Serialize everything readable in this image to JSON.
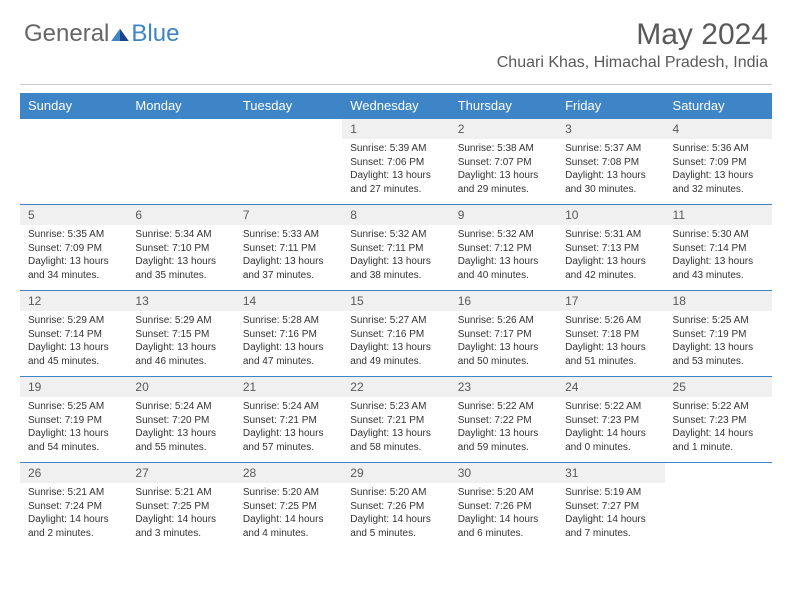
{
  "brand": {
    "general": "General",
    "blue": "Blue"
  },
  "title": "May 2024",
  "location": "Chuari Khas, Himachal Pradesh, India",
  "colors": {
    "accent": "#3d85c6",
    "text": "#595959",
    "dayHeaderBg": "#f0f0f0"
  },
  "weekdays": [
    "Sunday",
    "Monday",
    "Tuesday",
    "Wednesday",
    "Thursday",
    "Friday",
    "Saturday"
  ],
  "weeks": [
    [
      null,
      null,
      null,
      {
        "day": "1",
        "sunrise": "Sunrise: 5:39 AM",
        "sunset": "Sunset: 7:06 PM",
        "daylight": "Daylight: 13 hours and 27 minutes."
      },
      {
        "day": "2",
        "sunrise": "Sunrise: 5:38 AM",
        "sunset": "Sunset: 7:07 PM",
        "daylight": "Daylight: 13 hours and 29 minutes."
      },
      {
        "day": "3",
        "sunrise": "Sunrise: 5:37 AM",
        "sunset": "Sunset: 7:08 PM",
        "daylight": "Daylight: 13 hours and 30 minutes."
      },
      {
        "day": "4",
        "sunrise": "Sunrise: 5:36 AM",
        "sunset": "Sunset: 7:09 PM",
        "daylight": "Daylight: 13 hours and 32 minutes."
      }
    ],
    [
      {
        "day": "5",
        "sunrise": "Sunrise: 5:35 AM",
        "sunset": "Sunset: 7:09 PM",
        "daylight": "Daylight: 13 hours and 34 minutes."
      },
      {
        "day": "6",
        "sunrise": "Sunrise: 5:34 AM",
        "sunset": "Sunset: 7:10 PM",
        "daylight": "Daylight: 13 hours and 35 minutes."
      },
      {
        "day": "7",
        "sunrise": "Sunrise: 5:33 AM",
        "sunset": "Sunset: 7:11 PM",
        "daylight": "Daylight: 13 hours and 37 minutes."
      },
      {
        "day": "8",
        "sunrise": "Sunrise: 5:32 AM",
        "sunset": "Sunset: 7:11 PM",
        "daylight": "Daylight: 13 hours and 38 minutes."
      },
      {
        "day": "9",
        "sunrise": "Sunrise: 5:32 AM",
        "sunset": "Sunset: 7:12 PM",
        "daylight": "Daylight: 13 hours and 40 minutes."
      },
      {
        "day": "10",
        "sunrise": "Sunrise: 5:31 AM",
        "sunset": "Sunset: 7:13 PM",
        "daylight": "Daylight: 13 hours and 42 minutes."
      },
      {
        "day": "11",
        "sunrise": "Sunrise: 5:30 AM",
        "sunset": "Sunset: 7:14 PM",
        "daylight": "Daylight: 13 hours and 43 minutes."
      }
    ],
    [
      {
        "day": "12",
        "sunrise": "Sunrise: 5:29 AM",
        "sunset": "Sunset: 7:14 PM",
        "daylight": "Daylight: 13 hours and 45 minutes."
      },
      {
        "day": "13",
        "sunrise": "Sunrise: 5:29 AM",
        "sunset": "Sunset: 7:15 PM",
        "daylight": "Daylight: 13 hours and 46 minutes."
      },
      {
        "day": "14",
        "sunrise": "Sunrise: 5:28 AM",
        "sunset": "Sunset: 7:16 PM",
        "daylight": "Daylight: 13 hours and 47 minutes."
      },
      {
        "day": "15",
        "sunrise": "Sunrise: 5:27 AM",
        "sunset": "Sunset: 7:16 PM",
        "daylight": "Daylight: 13 hours and 49 minutes."
      },
      {
        "day": "16",
        "sunrise": "Sunrise: 5:26 AM",
        "sunset": "Sunset: 7:17 PM",
        "daylight": "Daylight: 13 hours and 50 minutes."
      },
      {
        "day": "17",
        "sunrise": "Sunrise: 5:26 AM",
        "sunset": "Sunset: 7:18 PM",
        "daylight": "Daylight: 13 hours and 51 minutes."
      },
      {
        "day": "18",
        "sunrise": "Sunrise: 5:25 AM",
        "sunset": "Sunset: 7:19 PM",
        "daylight": "Daylight: 13 hours and 53 minutes."
      }
    ],
    [
      {
        "day": "19",
        "sunrise": "Sunrise: 5:25 AM",
        "sunset": "Sunset: 7:19 PM",
        "daylight": "Daylight: 13 hours and 54 minutes."
      },
      {
        "day": "20",
        "sunrise": "Sunrise: 5:24 AM",
        "sunset": "Sunset: 7:20 PM",
        "daylight": "Daylight: 13 hours and 55 minutes."
      },
      {
        "day": "21",
        "sunrise": "Sunrise: 5:24 AM",
        "sunset": "Sunset: 7:21 PM",
        "daylight": "Daylight: 13 hours and 57 minutes."
      },
      {
        "day": "22",
        "sunrise": "Sunrise: 5:23 AM",
        "sunset": "Sunset: 7:21 PM",
        "daylight": "Daylight: 13 hours and 58 minutes."
      },
      {
        "day": "23",
        "sunrise": "Sunrise: 5:22 AM",
        "sunset": "Sunset: 7:22 PM",
        "daylight": "Daylight: 13 hours and 59 minutes."
      },
      {
        "day": "24",
        "sunrise": "Sunrise: 5:22 AM",
        "sunset": "Sunset: 7:23 PM",
        "daylight": "Daylight: 14 hours and 0 minutes."
      },
      {
        "day": "25",
        "sunrise": "Sunrise: 5:22 AM",
        "sunset": "Sunset: 7:23 PM",
        "daylight": "Daylight: 14 hours and 1 minute."
      }
    ],
    [
      {
        "day": "26",
        "sunrise": "Sunrise: 5:21 AM",
        "sunset": "Sunset: 7:24 PM",
        "daylight": "Daylight: 14 hours and 2 minutes."
      },
      {
        "day": "27",
        "sunrise": "Sunrise: 5:21 AM",
        "sunset": "Sunset: 7:25 PM",
        "daylight": "Daylight: 14 hours and 3 minutes."
      },
      {
        "day": "28",
        "sunrise": "Sunrise: 5:20 AM",
        "sunset": "Sunset: 7:25 PM",
        "daylight": "Daylight: 14 hours and 4 minutes."
      },
      {
        "day": "29",
        "sunrise": "Sunrise: 5:20 AM",
        "sunset": "Sunset: 7:26 PM",
        "daylight": "Daylight: 14 hours and 5 minutes."
      },
      {
        "day": "30",
        "sunrise": "Sunrise: 5:20 AM",
        "sunset": "Sunset: 7:26 PM",
        "daylight": "Daylight: 14 hours and 6 minutes."
      },
      {
        "day": "31",
        "sunrise": "Sunrise: 5:19 AM",
        "sunset": "Sunset: 7:27 PM",
        "daylight": "Daylight: 14 hours and 7 minutes."
      },
      null
    ]
  ]
}
